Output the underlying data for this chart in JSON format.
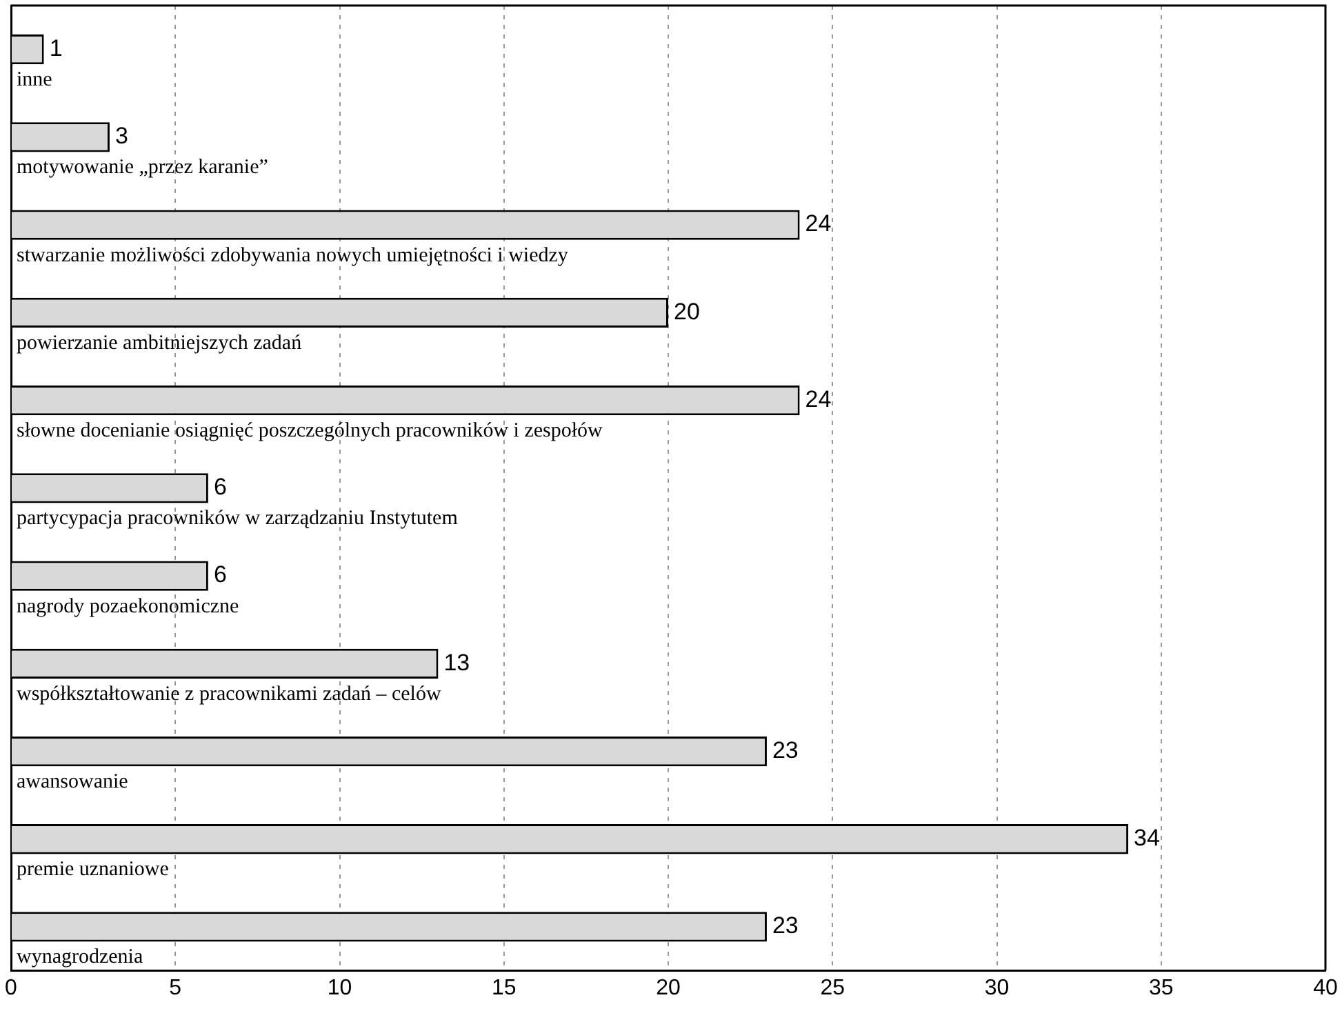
{
  "chart_data": {
    "type": "bar",
    "orientation": "horizontal",
    "categories": [
      "inne",
      "motywowanie „przez karanie”",
      "stwarzanie możliwości zdobywania nowych umiejętności i wiedzy",
      "powierzanie ambitniejszych zadań",
      "słowne docenianie osiągnięć poszczególnych pracowników i zespołów",
      "partycypacja pracowników w zarządzaniu Instytutem",
      "nagrody pozaekonomiczne",
      "współkształtowanie z pracownikami zadań – celów",
      "awansowanie",
      "premie uznaniowe",
      "wynagrodzenia"
    ],
    "values": [
      1,
      3,
      24,
      20,
      24,
      6,
      6,
      13,
      23,
      34,
      23
    ],
    "color": "#d9d9d9",
    "xlim": [
      0,
      40
    ],
    "xticks": [
      0,
      5,
      10,
      15,
      20,
      25,
      30,
      35,
      40
    ],
    "grid": "x",
    "data_labels": true,
    "legend": false
  }
}
